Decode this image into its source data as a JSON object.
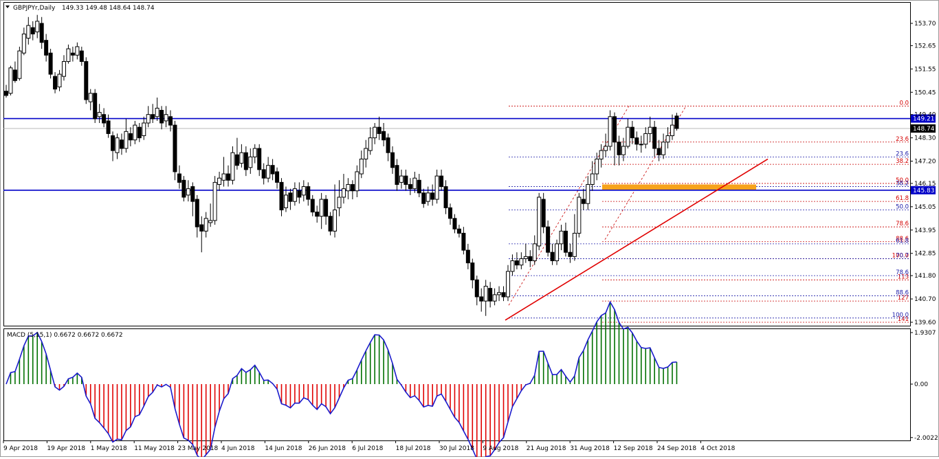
{
  "header": {
    "symbol_menu_icon": "triangle-down-icon",
    "title": "GBPJPYr,Daily",
    "ohlc": "149.33 149.48 148.64 148.74"
  },
  "price_axis": {
    "ticks": [
      "153.70",
      "152.65",
      "151.55",
      "150.45",
      "149.40",
      "148.30",
      "147.20",
      "146.15",
      "145.05",
      "143.95",
      "142.85",
      "141.80",
      "140.70",
      "139.60"
    ],
    "levels": [
      153.7,
      152.65,
      151.55,
      150.45,
      149.4,
      148.3,
      147.2,
      146.15,
      145.05,
      143.95,
      142.85,
      141.8,
      140.7,
      139.6
    ],
    "range": [
      139.2,
      154.4
    ]
  },
  "tags": {
    "resistance": {
      "label": "149.21",
      "value": 149.21,
      "color": "#0000c8"
    },
    "last": {
      "label": "148.74",
      "value": 148.74,
      "color": "#000000"
    },
    "support": {
      "label": "145.83",
      "value": 145.83,
      "color": "#0000c8"
    }
  },
  "date_axis": {
    "labels": [
      "9 Apr 2018",
      "19 Apr 2018",
      "1 May 2018",
      "11 May 2018",
      "23 May 2018",
      "4 Jun 2018",
      "14 Jun 2018",
      "26 Jun 2018",
      "6 Jul 2018",
      "18 Jul 2018",
      "30 Jul 2018",
      "9 Aug 2018",
      "21 Aug 2018",
      "31 Aug 2018",
      "12 Sep 2018",
      "24 Sep 2018",
      "4 Oct 2018"
    ]
  },
  "fib_red": {
    "labels": [
      "0.0",
      "23.6",
      "38.2",
      "50.0",
      "61.8",
      "78.6",
      "88.6",
      "100.0",
      "113",
      "127",
      "141"
    ],
    "levels": [
      149.8,
      148.1,
      147.05,
      146.15,
      145.3,
      144.1,
      143.4,
      142.6,
      141.6,
      140.6,
      139.6
    ]
  },
  "fib_blue": {
    "labels": [
      "23.6",
      "38.2",
      "50.0",
      "61.8",
      "70.7",
      "78.6",
      "88.6",
      "100.0"
    ],
    "levels": [
      147.4,
      146.0,
      144.9,
      143.3,
      142.6,
      141.8,
      140.85,
      139.8
    ]
  },
  "macd": {
    "title": "MACD (5,15,1) 0.6672 0.6672 0.6672",
    "ticks": [
      "1.9307",
      "0.00",
      "-2.0022"
    ],
    "levels": [
      1.9307,
      0,
      -2.0022
    ]
  },
  "colors": {
    "bull_fill": "#ffffff",
    "bear_fill": "#000000",
    "hline": "#0000c8",
    "trend": "#e00000",
    "zone": "#f7a21b",
    "macd_up": "#007000",
    "macd_down": "#e00000",
    "signal": "#1a1acc"
  },
  "chart_data": {
    "type": "candlestick",
    "title": "GBPJPYr,Daily",
    "ylim": [
      139.2,
      154.4
    ],
    "series": [
      {
        "name": "candles",
        "values": [
          [
            150.5,
            150.3,
            150.8,
            150.2
          ],
          [
            150.4,
            151.6,
            151.7,
            150.3
          ],
          [
            151.5,
            151.0,
            151.9,
            150.9
          ],
          [
            151.1,
            152.4,
            152.6,
            151.0
          ],
          [
            152.3,
            153.2,
            153.5,
            152.2
          ],
          [
            153.0,
            153.6,
            154.0,
            152.7
          ],
          [
            153.5,
            153.2,
            153.8,
            152.9
          ],
          [
            153.3,
            153.8,
            154.1,
            153.0
          ],
          [
            153.7,
            152.8,
            154.0,
            152.5
          ],
          [
            152.9,
            152.2,
            153.2,
            151.9
          ],
          [
            152.3,
            151.3,
            152.5,
            151.1
          ],
          [
            151.2,
            150.6,
            151.4,
            150.4
          ],
          [
            150.7,
            151.3,
            151.5,
            150.5
          ],
          [
            151.2,
            151.9,
            152.2,
            151.0
          ],
          [
            151.9,
            152.5,
            152.7,
            151.8
          ],
          [
            152.3,
            152.2,
            152.6,
            151.9
          ],
          [
            152.2,
            152.6,
            152.8,
            152.0
          ],
          [
            152.4,
            151.9,
            152.6,
            151.7
          ],
          [
            151.9,
            150.1,
            152.1,
            149.9
          ],
          [
            150.0,
            150.4,
            150.6,
            149.6
          ],
          [
            150.4,
            149.2,
            150.6,
            149.0
          ],
          [
            149.3,
            149.5,
            149.9,
            149.0
          ],
          [
            149.4,
            149.0,
            149.7,
            148.8
          ],
          [
            149.1,
            148.5,
            149.4,
            148.3
          ],
          [
            148.4,
            147.7,
            148.6,
            147.2
          ],
          [
            147.6,
            148.3,
            148.5,
            147.3
          ],
          [
            148.2,
            147.8,
            148.5,
            147.5
          ],
          [
            147.8,
            148.6,
            149.2,
            147.6
          ],
          [
            148.5,
            148.2,
            148.8,
            147.9
          ],
          [
            148.2,
            148.9,
            149.1,
            148.0
          ],
          [
            148.8,
            148.3,
            149.0,
            148.1
          ],
          [
            148.4,
            149.0,
            149.3,
            148.2
          ],
          [
            149.0,
            149.4,
            149.8,
            148.8
          ],
          [
            149.4,
            149.2,
            149.9,
            149.0
          ],
          [
            149.3,
            149.7,
            150.2,
            149.1
          ],
          [
            149.6,
            149.0,
            149.8,
            148.7
          ],
          [
            149.1,
            149.4,
            149.8,
            148.8
          ],
          [
            149.3,
            148.9,
            149.6,
            148.6
          ],
          [
            148.9,
            146.7,
            149.1,
            146.3
          ],
          [
            146.6,
            146.2,
            147.0,
            145.9
          ],
          [
            146.3,
            145.5,
            146.5,
            145.3
          ],
          [
            145.6,
            145.9,
            146.3,
            145.3
          ],
          [
            146.0,
            145.3,
            146.2,
            144.6
          ],
          [
            145.4,
            144.1,
            145.6,
            143.6
          ],
          [
            144.2,
            143.9,
            144.6,
            142.9
          ],
          [
            143.9,
            144.5,
            144.8,
            143.6
          ],
          [
            144.3,
            144.4,
            145.2,
            144.1
          ],
          [
            144.4,
            146.2,
            146.5,
            144.2
          ],
          [
            146.1,
            146.4,
            146.7,
            145.8
          ],
          [
            146.3,
            146.6,
            147.4,
            146.0
          ],
          [
            146.6,
            146.3,
            147.0,
            146.0
          ],
          [
            146.3,
            147.6,
            147.9,
            146.1
          ],
          [
            147.5,
            147.0,
            148.3,
            146.8
          ],
          [
            147.1,
            147.6,
            148.0,
            146.9
          ],
          [
            147.6,
            146.8,
            147.9,
            146.5
          ],
          [
            146.9,
            147.4,
            147.8,
            146.6
          ],
          [
            147.4,
            147.8,
            148.0,
            147.1
          ],
          [
            147.8,
            146.8,
            148.0,
            146.5
          ],
          [
            146.8,
            146.4,
            147.1,
            146.1
          ],
          [
            146.4,
            147.0,
            147.4,
            146.2
          ],
          [
            147.0,
            146.6,
            147.3,
            146.3
          ],
          [
            146.7,
            146.2,
            146.9,
            145.9
          ],
          [
            146.2,
            144.9,
            146.4,
            144.6
          ],
          [
            145.0,
            145.6,
            146.0,
            144.8
          ],
          [
            145.7,
            145.3,
            145.9,
            144.9
          ],
          [
            145.3,
            145.9,
            146.2,
            145.1
          ],
          [
            145.8,
            145.5,
            146.2,
            145.2
          ],
          [
            145.6,
            146.0,
            146.3,
            145.3
          ],
          [
            146.0,
            145.4,
            146.2,
            145.1
          ],
          [
            145.4,
            144.8,
            145.6,
            144.6
          ],
          [
            144.8,
            144.6,
            145.1,
            144.3
          ],
          [
            144.6,
            145.4,
            145.7,
            144.0
          ],
          [
            145.4,
            144.6,
            145.6,
            144.2
          ],
          [
            144.6,
            143.9,
            144.8,
            143.7
          ],
          [
            143.9,
            144.9,
            146.1,
            143.6
          ],
          [
            145.0,
            145.5,
            146.3,
            144.6
          ],
          [
            145.5,
            145.9,
            146.6,
            145.2
          ],
          [
            145.8,
            146.1,
            146.4,
            145.4
          ],
          [
            146.1,
            145.8,
            146.3,
            145.4
          ],
          [
            145.8,
            146.7,
            147.0,
            145.5
          ],
          [
            146.6,
            147.3,
            147.7,
            146.4
          ],
          [
            147.3,
            147.8,
            148.2,
            146.9
          ],
          [
            147.7,
            148.3,
            148.8,
            147.5
          ],
          [
            148.3,
            148.8,
            149.0,
            148.0
          ],
          [
            148.8,
            148.5,
            149.3,
            148.2
          ],
          [
            148.6,
            148.2,
            149.0,
            147.9
          ],
          [
            148.3,
            147.6,
            148.5,
            147.2
          ],
          [
            147.6,
            146.9,
            147.9,
            146.6
          ],
          [
            147.0,
            146.1,
            147.3,
            145.8
          ],
          [
            146.2,
            146.5,
            146.8,
            145.9
          ],
          [
            146.5,
            146.1,
            146.8,
            145.8
          ],
          [
            146.1,
            145.9,
            146.4,
            145.6
          ],
          [
            145.9,
            146.4,
            146.7,
            145.7
          ],
          [
            146.3,
            145.7,
            146.6,
            145.5
          ],
          [
            145.7,
            145.2,
            145.9,
            145.0
          ],
          [
            145.3,
            145.7,
            146.0,
            145.1
          ],
          [
            145.7,
            145.4,
            146.1,
            145.1
          ],
          [
            145.4,
            146.5,
            146.8,
            145.2
          ],
          [
            146.5,
            146.0,
            146.8,
            145.8
          ],
          [
            146.0,
            145.0,
            146.3,
            144.7
          ],
          [
            145.0,
            144.5,
            145.2,
            144.2
          ],
          [
            144.5,
            144.0,
            144.7,
            143.8
          ],
          [
            144.0,
            143.8,
            144.2,
            143.6
          ],
          [
            143.8,
            143.0,
            144.1,
            142.8
          ],
          [
            143.0,
            142.4,
            143.3,
            142.1
          ],
          [
            142.4,
            141.6,
            142.6,
            141.2
          ],
          [
            141.6,
            140.8,
            141.8,
            140.4
          ],
          [
            140.8,
            140.6,
            141.2,
            140.1
          ],
          [
            140.6,
            141.3,
            141.6,
            139.9
          ],
          [
            141.2,
            140.6,
            141.5,
            140.3
          ],
          [
            140.6,
            140.9,
            141.2,
            140.4
          ],
          [
            140.9,
            141.0,
            141.3,
            140.6
          ],
          [
            141.0,
            140.8,
            141.3,
            140.6
          ],
          [
            140.8,
            142.0,
            142.3,
            140.6
          ],
          [
            142.0,
            142.5,
            142.8,
            141.8
          ],
          [
            142.5,
            142.3,
            142.9,
            142.1
          ],
          [
            142.3,
            142.6,
            142.9,
            142.1
          ],
          [
            142.6,
            142.7,
            143.3,
            142.4
          ],
          [
            142.7,
            142.5,
            143.0,
            142.2
          ],
          [
            142.5,
            143.3,
            143.7,
            142.3
          ],
          [
            143.2,
            145.5,
            145.7,
            143.0
          ],
          [
            145.4,
            144.1,
            145.7,
            143.8
          ],
          [
            144.1,
            142.9,
            144.4,
            142.7
          ],
          [
            142.9,
            142.5,
            143.3,
            142.3
          ],
          [
            142.5,
            143.3,
            143.5,
            142.3
          ],
          [
            143.3,
            143.9,
            144.2,
            143.0
          ],
          [
            143.9,
            142.9,
            144.3,
            142.7
          ],
          [
            142.9,
            142.7,
            143.3,
            142.4
          ],
          [
            142.7,
            143.8,
            144.7,
            142.5
          ],
          [
            143.8,
            145.5,
            145.7,
            143.6
          ],
          [
            145.4,
            145.2,
            145.9,
            144.9
          ],
          [
            145.2,
            146.1,
            146.5,
            144.9
          ],
          [
            146.1,
            146.6,
            147.2,
            145.8
          ],
          [
            146.6,
            147.3,
            147.6,
            146.3
          ],
          [
            147.3,
            147.7,
            148.0,
            146.9
          ],
          [
            147.7,
            147.9,
            148.5,
            147.4
          ],
          [
            147.9,
            149.3,
            149.6,
            147.7
          ],
          [
            149.3,
            148.1,
            149.5,
            147.0
          ],
          [
            148.1,
            147.5,
            148.4,
            147.0
          ],
          [
            147.5,
            147.9,
            148.3,
            147.2
          ],
          [
            147.9,
            148.8,
            149.2,
            147.8
          ],
          [
            148.8,
            148.3,
            149.1,
            148.0
          ],
          [
            148.3,
            148.0,
            148.6,
            147.7
          ],
          [
            148.0,
            148.0,
            148.4,
            147.6
          ],
          [
            148.0,
            148.5,
            148.8,
            147.8
          ],
          [
            148.5,
            148.8,
            149.3,
            148.1
          ],
          [
            148.8,
            147.8,
            149.1,
            147.4
          ],
          [
            147.8,
            147.5,
            148.2,
            147.2
          ],
          [
            147.5,
            148.1,
            148.5,
            147.3
          ],
          [
            148.1,
            148.4,
            148.8,
            147.8
          ],
          [
            148.4,
            148.9,
            149.4,
            148.2
          ],
          [
            149.33,
            148.74,
            149.48,
            148.64
          ]
        ]
      }
    ],
    "notes": "OHLC per candle [open, close, high, low]"
  }
}
